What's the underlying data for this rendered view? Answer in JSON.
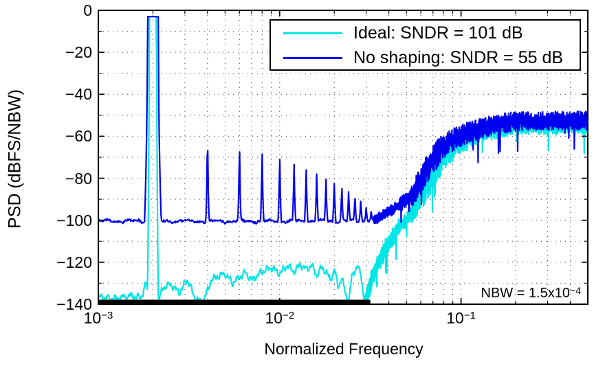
{
  "chart_data": {
    "type": "line",
    "title": "",
    "xlabel": "Normalized Frequency",
    "ylabel": "PSD (dBFS/NBW)",
    "xscale": "log",
    "xlim": [
      0.001,
      0.5
    ],
    "ylim": [
      -140,
      0
    ],
    "grid": {
      "style": "dotted",
      "x_lines": "all log minor and major ticks",
      "y_step_db": 10
    },
    "xticks": [
      {
        "base": "10",
        "exp": "−3",
        "value": 0.001
      },
      {
        "base": "10",
        "exp": "−2",
        "value": 0.01
      },
      {
        "base": "10",
        "exp": "−1",
        "value": 0.1
      }
    ],
    "yticks": [
      {
        "label": "0",
        "value": 0
      },
      {
        "label": "−20",
        "value": -20
      },
      {
        "label": "−40",
        "value": -40
      },
      {
        "label": "−60",
        "value": -60
      },
      {
        "label": "−80",
        "value": -80
      },
      {
        "label": "−100",
        "value": -100
      },
      {
        "label": "−120",
        "value": -120
      },
      {
        "label": "−140",
        "value": -140
      }
    ],
    "legend": {
      "position": "top-right",
      "entries": [
        {
          "label": "Ideal: SNDR = 101 dB",
          "color": "#00E5E5"
        },
        {
          "label": "No shaping: SNDR = 55 dB",
          "color": "#0000F0"
        }
      ]
    },
    "annotation": {
      "prefix": "NBW = 1.5x10",
      "exp": "−4"
    },
    "inband_marker": {
      "from": 0.001,
      "to": 0.0316,
      "color": "#000000"
    },
    "series": [
      {
        "name": "Ideal: SNDR = 101 dB",
        "color": "#00E5E5",
        "signal": {
          "freq": 0.002,
          "level_db": -3,
          "top_hw": 0.02,
          "base_hw": 0.03,
          "base_db": -140,
          "exp": 0.6
        },
        "floor": [
          [
            0.001,
            -136.5
          ],
          [
            0.00125,
            -137.5
          ],
          [
            0.0015,
            -136
          ],
          [
            0.00172,
            -137
          ],
          [
            0.00183,
            -130
          ],
          [
            0.0019,
            -136
          ],
          [
            0.00212,
            -139.8
          ],
          [
            0.00228,
            -132
          ],
          [
            0.0025,
            -130.5
          ],
          [
            0.0028,
            -134.5
          ],
          [
            0.0031,
            -128
          ],
          [
            0.0034,
            -137
          ],
          [
            0.00375,
            -139.5
          ],
          [
            0.0042,
            -128.5
          ],
          [
            0.0046,
            -126.5
          ],
          [
            0.005,
            -125.5
          ],
          [
            0.0055,
            -130
          ],
          [
            0.006,
            -127
          ],
          [
            0.0065,
            -125
          ],
          [
            0.007,
            -128.5
          ],
          [
            0.008,
            -124.5
          ],
          [
            0.009,
            -122.5
          ],
          [
            0.01,
            -125.5
          ],
          [
            0.011,
            -121.5
          ],
          [
            0.012,
            -124.5
          ],
          [
            0.013,
            -121
          ],
          [
            0.014,
            -123.5
          ],
          [
            0.015,
            -121.5
          ],
          [
            0.016,
            -126.5
          ],
          [
            0.017,
            -122.5
          ],
          [
            0.018,
            -124.5
          ],
          [
            0.019,
            -128.5
          ],
          [
            0.02,
            -123.5
          ],
          [
            0.021,
            -131.5
          ],
          [
            0.022,
            -127.5
          ],
          [
            0.023,
            -134.5
          ],
          [
            0.024,
            -139.5
          ],
          [
            0.025,
            -126.5
          ],
          [
            0.026,
            -123.5
          ],
          [
            0.027,
            -122.5
          ],
          [
            0.028,
            -125.5
          ],
          [
            0.0285,
            -130
          ],
          [
            0.029,
            -136
          ],
          [
            0.0295,
            -139.8
          ]
        ],
        "rise": [
          [
            0.0295,
            -139.8
          ],
          [
            0.0315,
            -131
          ],
          [
            0.033,
            -125
          ],
          [
            0.036,
            -118
          ],
          [
            0.038,
            -114
          ],
          [
            0.0455,
            -103
          ],
          [
            0.054,
            -97
          ],
          [
            0.0644,
            -85
          ],
          [
            0.0771,
            -72
          ],
          [
            0.0923,
            -65
          ],
          [
            0.11,
            -61
          ],
          [
            0.132,
            -58
          ],
          [
            0.16,
            -56
          ],
          [
            0.2,
            -55
          ],
          [
            0.35,
            -55
          ],
          [
            0.5,
            -54.5
          ]
        ],
        "noise": {
          "floor_wiggle": 1.0,
          "seed": 5
        }
      },
      {
        "name": "No shaping: SNDR = 55 dB",
        "color": "#0000F0",
        "signal": {
          "freq": 0.002,
          "level_db": -3,
          "top_hw": 0.03,
          "base_hw": 0.046,
          "base_db": -101,
          "exp": 0.45
        },
        "floor_db": -100.4,
        "harmonic_lobe": {
          "top_hw": 0.0012,
          "base_hw": 0.009,
          "base_db": -100.5,
          "exp": 0.5
        },
        "harmonics": [
          [
            0.004,
            -60
          ],
          [
            0.006,
            -66
          ],
          [
            0.008,
            -68.5
          ],
          [
            0.01,
            -71
          ],
          [
            0.012,
            -73.5
          ],
          [
            0.014,
            -76
          ],
          [
            0.016,
            -78
          ],
          [
            0.018,
            -80.5
          ],
          [
            0.02,
            -82.5
          ],
          [
            0.022,
            -85
          ],
          [
            0.024,
            -86.5
          ],
          [
            0.026,
            -89
          ],
          [
            0.028,
            -91
          ],
          [
            0.03,
            -94
          ],
          [
            0.032,
            -96
          ]
        ],
        "rise": [
          [
            0.033,
            -100
          ],
          [
            0.038,
            -97
          ],
          [
            0.0455,
            -93
          ],
          [
            0.054,
            -88
          ],
          [
            0.0644,
            -76
          ],
          [
            0.0771,
            -66
          ],
          [
            0.0923,
            -61
          ],
          [
            0.11,
            -58
          ],
          [
            0.132,
            -56
          ],
          [
            0.16,
            -54
          ],
          [
            0.19,
            -53.2
          ],
          [
            0.25,
            -52.6
          ],
          [
            0.35,
            -52.6
          ],
          [
            0.5,
            -52.4
          ]
        ],
        "noise": {
          "floor_wiggle": 0.45,
          "seed": 11
        }
      }
    ]
  }
}
